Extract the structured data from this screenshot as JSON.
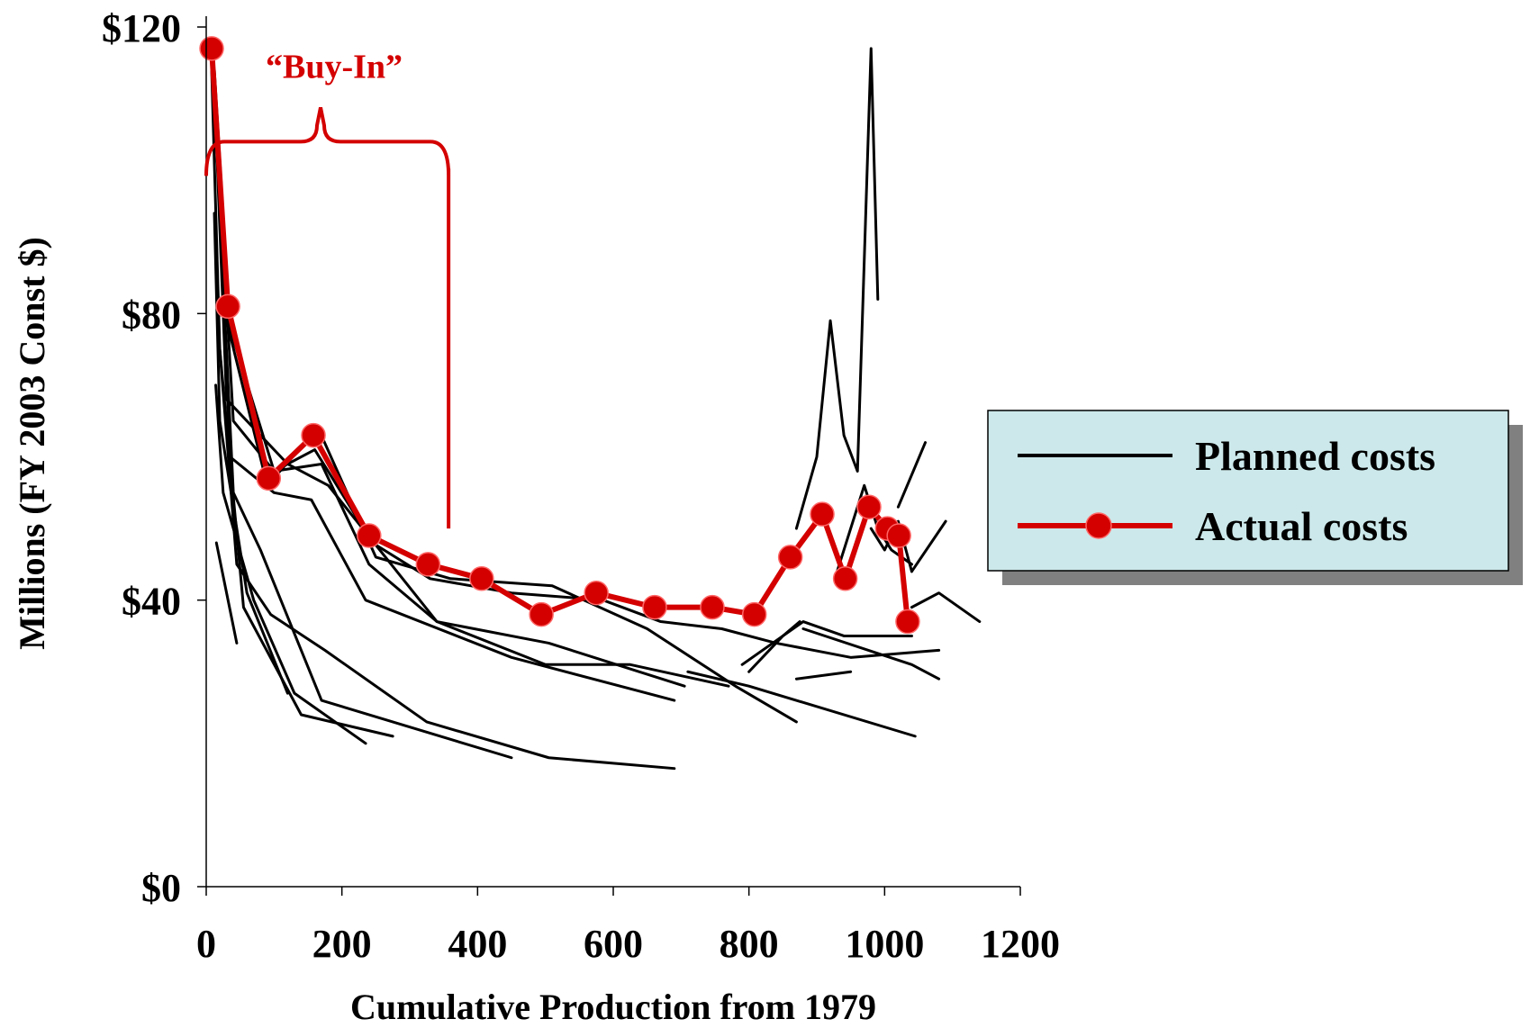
{
  "chart_data": {
    "type": "line",
    "title": "",
    "xlabel": "Cumulative Production from 1979",
    "ylabel": "Millions (FY 2003 Const $)",
    "xlim": [
      0,
      1200
    ],
    "ylim": [
      0,
      120
    ],
    "x_ticks": [
      0,
      200,
      400,
      600,
      800,
      1000,
      1200
    ],
    "x_tick_labels": [
      "0",
      "200",
      "400",
      "600",
      "800",
      "1000",
      "1200"
    ],
    "y_ticks": [
      0,
      40,
      80,
      120
    ],
    "y_tick_labels": [
      "$0",
      "$40",
      "$80",
      "$120"
    ],
    "grid": false,
    "legend_position": "right",
    "colors": {
      "planned": "#000000",
      "actual": "#d40000",
      "legend_bg": "#cce8ea",
      "legend_shadow": "#808080"
    },
    "legend": [
      {
        "label": "Planned costs",
        "style": "line"
      },
      {
        "label": "Actual costs",
        "style": "line-marker"
      }
    ],
    "annotation": {
      "text": "“Buy-In”",
      "x_start": 0,
      "x_end": 340,
      "y": 104,
      "y_bottom": 50
    },
    "planned_series": [
      {
        "x": [
          15,
          45
        ],
        "y": [
          48,
          34
        ]
      },
      {
        "x": [
          12,
          20,
          60,
          120
        ],
        "y": [
          94,
          65,
          41,
          27
        ]
      },
      {
        "x": [
          14,
          25,
          70,
          130,
          235
        ],
        "y": [
          70,
          55,
          40,
          27,
          20
        ]
      },
      {
        "x": [
          8,
          20,
          55,
          140,
          275
        ],
        "y": [
          114,
          75,
          39,
          24,
          21
        ]
      },
      {
        "x": [
          15,
          40,
          80,
          170,
          450
        ],
        "y": [
          104,
          55,
          47,
          26,
          18
        ]
      },
      {
        "x": [
          20,
          45,
          95,
          175,
          325,
          505,
          690
        ],
        "y": [
          75,
          45,
          38,
          33,
          23,
          18,
          16.5
        ]
      },
      {
        "x": [
          12,
          35,
          100,
          155,
          235,
          450,
          690
        ],
        "y": [
          112,
          60,
          55,
          54,
          40,
          32,
          26
        ]
      },
      {
        "x": [
          10,
          30,
          120,
          180,
          340,
          505,
          705
        ],
        "y": [
          116,
          68,
          59,
          56,
          37,
          34,
          28
        ]
      },
      {
        "x": [
          12,
          40,
          100,
          170,
          240,
          340,
          500,
          625,
          770
        ],
        "y": [
          111,
          65,
          58,
          59,
          45,
          37,
          31,
          31,
          28
        ]
      },
      {
        "x": [
          8,
          30,
          90,
          165,
          250,
          360,
          510,
          650,
          780,
          870
        ],
        "y": [
          118,
          79,
          56,
          64,
          46,
          43,
          42,
          36,
          28,
          23
        ]
      },
      {
        "x": [
          12,
          35,
          100,
          160,
          245,
          330,
          450,
          585,
          670,
          760,
          840,
          950,
          1080
        ],
        "y": [
          114,
          78,
          58,
          61,
          48,
          43,
          41,
          40,
          37,
          36,
          34,
          32,
          33
        ]
      },
      {
        "x": [
          800,
          850,
          875
        ],
        "y": [
          30,
          35,
          37
        ]
      },
      {
        "x": [
          790,
          880,
          940,
          1000,
          1040
        ],
        "y": [
          31,
          37,
          35,
          35,
          35
        ]
      },
      {
        "x": [
          710,
          800,
          1045
        ],
        "y": [
          30,
          28,
          21
        ]
      },
      {
        "x": [
          880,
          1040,
          1080
        ],
        "y": [
          36,
          31,
          29
        ]
      },
      {
        "x": [
          870,
          950
        ],
        "y": [
          29,
          30
        ]
      },
      {
        "x": [
          1040,
          1080,
          1140
        ],
        "y": [
          39,
          41,
          37
        ]
      },
      {
        "x": [
          1040,
          1090
        ],
        "y": [
          44,
          51
        ]
      },
      {
        "x": [
          1020,
          1060
        ],
        "y": [
          53,
          62
        ]
      },
      {
        "x": [
          870,
          900,
          920,
          940,
          960,
          980,
          990
        ],
        "y": [
          50,
          60,
          79,
          63,
          58,
          117,
          82
        ]
      },
      {
        "x": [
          930,
          970,
          990,
          1010,
          1040
        ],
        "y": [
          44,
          56,
          50,
          47,
          45
        ]
      },
      {
        "x": [
          980,
          1000,
          1020,
          1040
        ],
        "y": [
          50,
          47,
          51,
          44
        ]
      }
    ],
    "series": [
      {
        "name": "Actual costs",
        "x": [
          8,
          32,
          92,
          158,
          240,
          327,
          406,
          494,
          575,
          661,
          746,
          808,
          861,
          908,
          942,
          977,
          1004,
          1021,
          1034
        ],
        "y": [
          117,
          81,
          57,
          63,
          49,
          45,
          43,
          38,
          41,
          39,
          39,
          38,
          46,
          52,
          43,
          53,
          50,
          49,
          37
        ]
      }
    ]
  }
}
